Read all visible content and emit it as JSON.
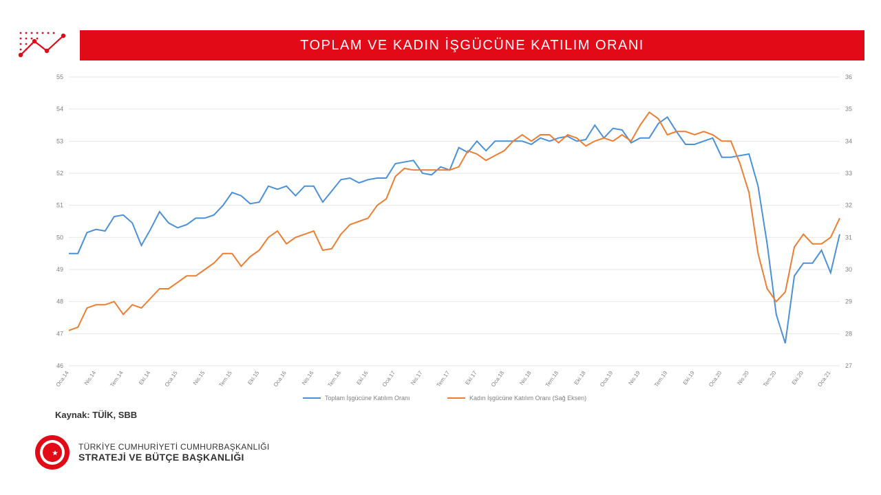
{
  "title": "TOPLAM VE KADIN İŞGÜCÜNE KATILIM ORANI",
  "source_label": "Kaynak: TÜİK, SBB",
  "org": {
    "line1": "TÜRKİYE CUMHURİYETİ CUMHURBAŞKANLIĞI",
    "line2": "STRATEJİ VE BÜTÇE BAŞKANLIĞI"
  },
  "colors": {
    "title_bg": "#e30a17",
    "title_fg": "#ffffff",
    "series_total": "#4a90d9",
    "series_women": "#ed7d31",
    "grid": "#e6e6e6",
    "axis_text": "#808080",
    "page_bg": "#ffffff"
  },
  "legend": {
    "total": "Toplam İşgücüne Katılım Oranı",
    "women": "Kadın İşgücüne Katılım Oranı (Sağ Eksen)"
  },
  "chart": {
    "type": "line-dual-axis",
    "y_left": {
      "min": 46,
      "max": 55,
      "step": 1
    },
    "y_right": {
      "min": 27,
      "max": 36,
      "step": 1
    },
    "x_labels": [
      "Oca.14",
      "Nis.14",
      "Tem.14",
      "Eki.14",
      "Oca.15",
      "Nis.15",
      "Tem.15",
      "Eki.15",
      "Oca.16",
      "Nis.16",
      "Tem.16",
      "Eki.16",
      "Oca.17",
      "Nis.17",
      "Tem.17",
      "Eki.17",
      "Oca.18",
      "Nis.18",
      "Tem.18",
      "Eki.18",
      "Oca.19",
      "Nis.19",
      "Tem.19",
      "Eki.19",
      "Oca.20",
      "Nis.20",
      "Tem.20",
      "Eki.20",
      "Oca.21"
    ],
    "x_label_every": 3,
    "n_points": 86,
    "line_width": 2,
    "series_total_y": [
      49.5,
      49.5,
      50.15,
      50.25,
      50.2,
      50.65,
      50.7,
      50.45,
      49.75,
      50.25,
      50.8,
      50.45,
      50.3,
      50.4,
      50.6,
      50.6,
      50.7,
      51.0,
      51.4,
      51.3,
      51.05,
      51.1,
      51.6,
      51.5,
      51.6,
      51.3,
      51.6,
      51.6,
      51.1,
      51.45,
      51.8,
      51.85,
      51.7,
      51.8,
      51.85,
      51.85,
      52.3,
      52.35,
      52.4,
      52.0,
      51.95,
      52.2,
      52.1,
      52.8,
      52.65,
      53.0,
      52.7,
      53.0,
      53.0,
      53.0,
      53.0,
      52.9,
      53.1,
      53.0,
      53.1,
      53.15,
      53.0,
      53.05,
      53.5,
      53.1,
      53.4,
      53.35,
      52.95,
      53.1,
      53.1,
      53.55,
      53.75,
      53.3,
      52.9,
      52.9,
      53.0,
      53.1,
      52.5,
      52.5,
      52.55,
      52.6,
      51.6,
      49.8,
      47.6,
      46.7,
      48.8,
      49.2,
      49.2,
      49.6,
      48.9,
      50.1
    ],
    "series_women_y": [
      28.1,
      28.2,
      28.8,
      28.9,
      28.9,
      29.0,
      28.6,
      28.9,
      28.8,
      29.1,
      29.4,
      29.4,
      29.6,
      29.8,
      29.8,
      30.0,
      30.2,
      30.5,
      30.5,
      30.1,
      30.4,
      30.6,
      31.0,
      31.2,
      30.8,
      31.0,
      31.1,
      31.2,
      30.6,
      30.65,
      31.1,
      31.4,
      31.5,
      31.6,
      32.0,
      32.2,
      32.9,
      33.15,
      33.1,
      33.1,
      33.1,
      33.1,
      33.1,
      33.2,
      33.7,
      33.6,
      33.4,
      33.55,
      33.7,
      34.0,
      34.2,
      34.0,
      34.2,
      34.2,
      33.95,
      34.2,
      34.1,
      33.85,
      34.0,
      34.1,
      34.0,
      34.2,
      34.0,
      34.5,
      34.9,
      34.7,
      34.2,
      34.3,
      34.3,
      34.2,
      34.3,
      34.2,
      34.0,
      34.0,
      33.3,
      32.4,
      30.5,
      29.4,
      29.0,
      29.3,
      30.7,
      31.1,
      30.8,
      30.8,
      31.0,
      31.6
    ]
  }
}
